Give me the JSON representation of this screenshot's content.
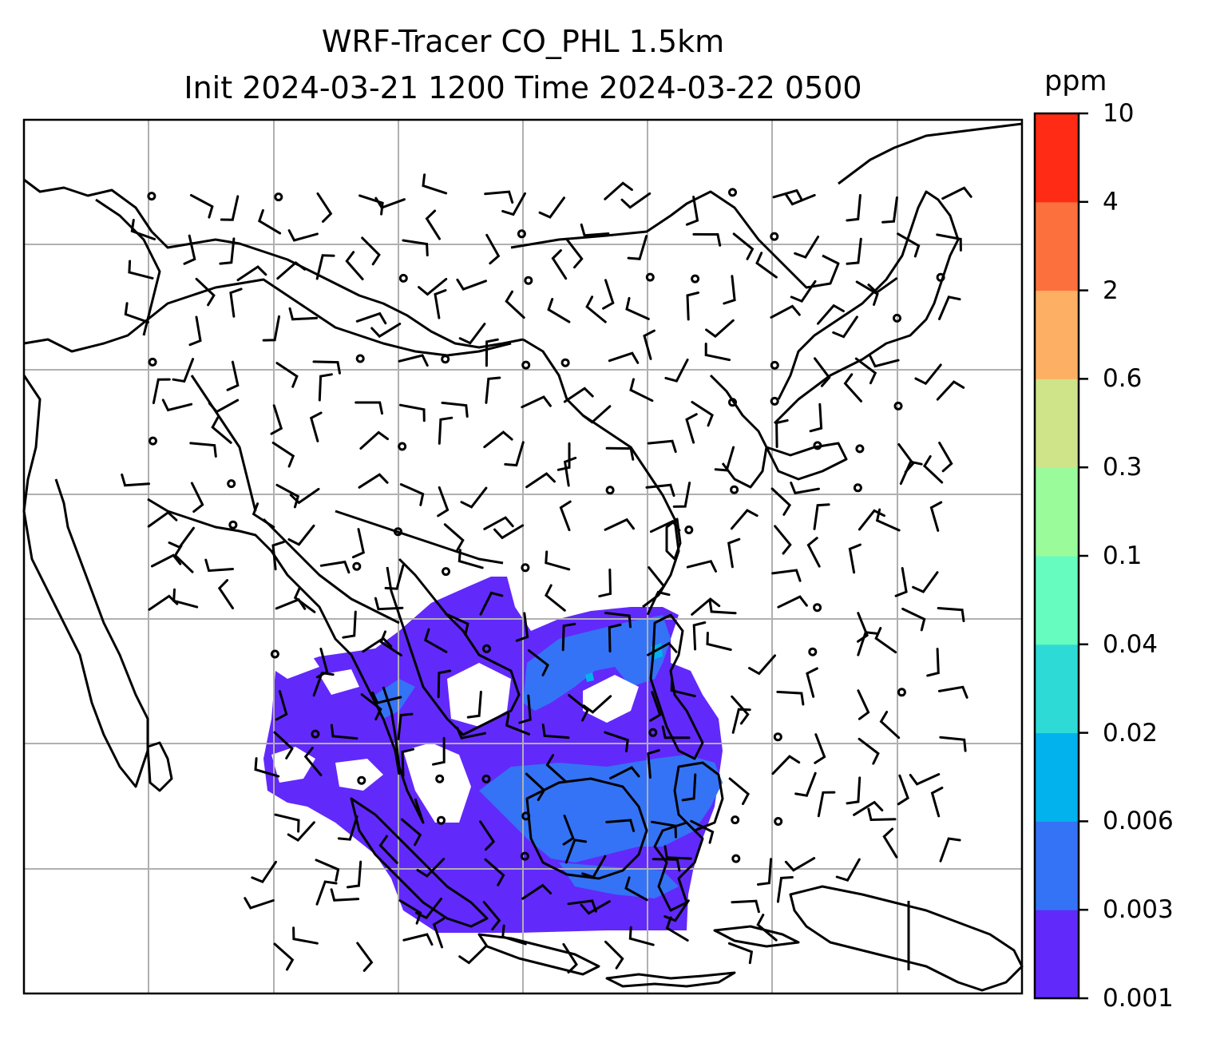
{
  "title": {
    "line1": "WRF-Tracer CO_PHL 1.5km",
    "line2": "Init 2024-03-21 1200 Time 2024-03-22 0500"
  },
  "colorbar": {
    "unit": "ppm",
    "levels": [
      "0.001",
      "0.003",
      "0.006",
      "0.02",
      "0.04",
      "0.1",
      "0.3",
      "0.6",
      "2",
      "4",
      "10"
    ],
    "colors": [
      "#6229fb",
      "#3473f5",
      "#02b2ed",
      "#2edad6",
      "#66fcc0",
      "#9afb9a",
      "#cfe489",
      "#fdb063",
      "#fc703e",
      "#ff2b14"
    ]
  },
  "map": {
    "gridlines": true,
    "coastline_color": "#000000",
    "grid_color": "#b0b0b0",
    "plume_colors": {
      "main": "#6229fb",
      "secondary": "#3473f5",
      "trace": "#02b2ed"
    }
  }
}
